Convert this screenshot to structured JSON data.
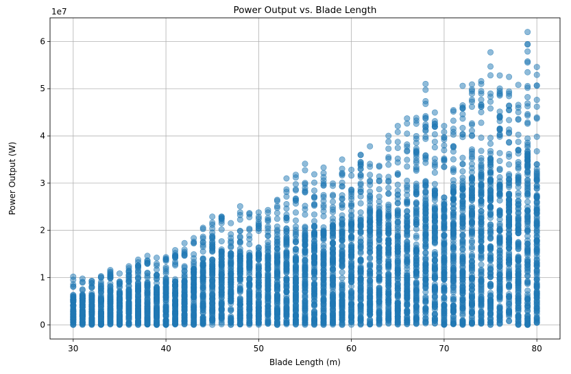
{
  "chart_data": {
    "type": "scatter",
    "title": "Power Output vs. Blade Length",
    "xlabel": "Blade Length (m)",
    "ylabel": "Power Output (W)",
    "y_multiplier_label": "1e7",
    "x_ticks": [
      30,
      40,
      50,
      60,
      70,
      80
    ],
    "y_ticks": [
      0,
      1,
      2,
      3,
      4,
      5,
      6
    ],
    "xlim": [
      27.5,
      82.5
    ],
    "ylim": [
      -0.3,
      6.5
    ],
    "y_unit_multiplier": 10000000,
    "grid": true,
    "marker_color": "#1f77b4",
    "marker_alpha": 0.5,
    "x_values": "integers 30 through 80 (blade length in m), many points per value",
    "column_max_y": [
      {
        "x": 30,
        "y": 1.02
      },
      {
        "x": 33,
        "y": 1.03
      },
      {
        "x": 34,
        "y": 1.16
      },
      {
        "x": 36,
        "y": 1.24
      },
      {
        "x": 37,
        "y": 1.38
      },
      {
        "x": 38,
        "y": 1.46
      },
      {
        "x": 39,
        "y": 1.42
      },
      {
        "x": 41,
        "y": 1.58
      },
      {
        "x": 42,
        "y": 1.73
      },
      {
        "x": 45,
        "y": 2.29
      },
      {
        "x": 48,
        "y": 2.51
      },
      {
        "x": 51,
        "y": 2.43
      },
      {
        "x": 53,
        "y": 3.1
      },
      {
        "x": 55,
        "y": 3.41
      },
      {
        "x": 57,
        "y": 3.33
      },
      {
        "x": 59,
        "y": 3.5
      },
      {
        "x": 62,
        "y": 3.78
      },
      {
        "x": 64,
        "y": 4.0
      },
      {
        "x": 65,
        "y": 4.21
      },
      {
        "x": 66,
        "y": 4.37
      },
      {
        "x": 68,
        "y": 5.1
      },
      {
        "x": 70,
        "y": 4.21
      },
      {
        "x": 72,
        "y": 5.06
      },
      {
        "x": 73,
        "y": 5.09
      },
      {
        "x": 75,
        "y": 5.77
      },
      {
        "x": 76,
        "y": 5.28
      },
      {
        "x": 77,
        "y": 5.25
      },
      {
        "x": 78,
        "y": 5.08
      },
      {
        "x": 79,
        "y": 6.2
      },
      {
        "x": 80,
        "y": 5.46
      }
    ]
  }
}
